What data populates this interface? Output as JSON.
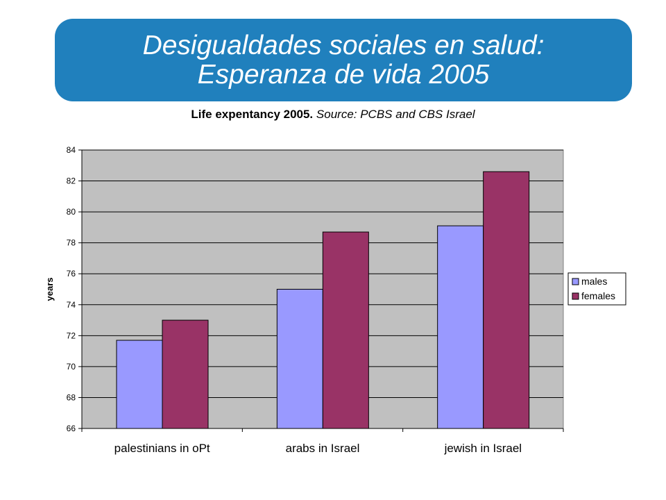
{
  "slide": {
    "title_line1": "Desigualdades sociales en salud:",
    "title_line2": "Esperanza de vida 2005"
  },
  "chart_data": {
    "type": "bar",
    "title": "Life expentancy 2005.",
    "subtitle": "Source: PCBS and CBS Israel",
    "categories": [
      "palestinians in  oPt",
      "arabs in Israel",
      "jewish in Israel"
    ],
    "series": [
      {
        "name": "males",
        "values": [
          71.7,
          75.0,
          79.1
        ],
        "color": "#9999ff"
      },
      {
        "name": "females",
        "values": [
          73.0,
          78.7,
          82.6
        ],
        "color": "#993366"
      }
    ],
    "xlabel": "",
    "ylabel": "years",
    "ylim": [
      66,
      84
    ],
    "yticks": [
      66,
      68,
      70,
      72,
      74,
      76,
      78,
      80,
      82,
      84
    ],
    "grid": true,
    "legend_position": "right",
    "plot_background": "#c0c0c0"
  }
}
